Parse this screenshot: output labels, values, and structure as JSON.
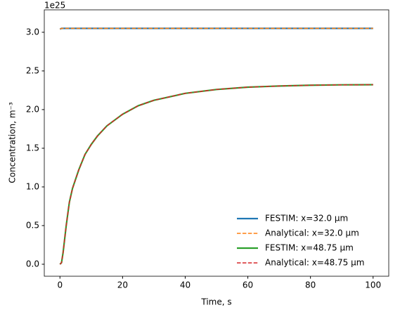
{
  "chart_data": {
    "type": "line",
    "y_label": "Concentration, m⁻³",
    "x_label": "Time, s",
    "y_offset_label": "1e25",
    "x": [
      0,
      0.5,
      1,
      2,
      3,
      4,
      5,
      6,
      8,
      10,
      12,
      15,
      20,
      25,
      30,
      40,
      50,
      60,
      70,
      80,
      90,
      100
    ],
    "series": [
      {
        "name": "FESTIM: x=32.0 µm",
        "color": "#1f77b4",
        "linestyle": "solid",
        "values": [
          3.04,
          3.05,
          3.05,
          3.05,
          3.05,
          3.05,
          3.05,
          3.05,
          3.05,
          3.05,
          3.05,
          3.05,
          3.05,
          3.05,
          3.05,
          3.05,
          3.05,
          3.05,
          3.05,
          3.05,
          3.05,
          3.05
        ]
      },
      {
        "name": "Analytical: x=32.0 µm",
        "color": "#ff7f0e",
        "linestyle": "dashed",
        "values": [
          3.04,
          3.05,
          3.05,
          3.05,
          3.05,
          3.05,
          3.05,
          3.05,
          3.05,
          3.05,
          3.05,
          3.05,
          3.05,
          3.05,
          3.05,
          3.05,
          3.05,
          3.05,
          3.05,
          3.05,
          3.05,
          3.05
        ]
      },
      {
        "name": "FESTIM: x=48.75 µm",
        "color": "#2ca02c",
        "linestyle": "solid",
        "values": [
          0,
          0.02,
          0.15,
          0.5,
          0.8,
          0.98,
          1.1,
          1.22,
          1.42,
          1.55,
          1.66,
          1.79,
          1.94,
          2.05,
          2.12,
          2.21,
          2.26,
          2.29,
          2.305,
          2.315,
          2.32,
          2.322
        ]
      },
      {
        "name": "Analytical: x=48.75 µm",
        "color": "#d62728",
        "linestyle": "dashed",
        "values": [
          0,
          0.02,
          0.15,
          0.5,
          0.8,
          0.98,
          1.1,
          1.22,
          1.42,
          1.55,
          1.66,
          1.79,
          1.94,
          2.05,
          2.12,
          2.21,
          2.26,
          2.29,
          2.305,
          2.315,
          2.32,
          2.322
        ]
      }
    ],
    "xlim": [
      -5,
      105
    ],
    "xticks": [
      0,
      20,
      40,
      60,
      80,
      100
    ],
    "ylim": [
      -0.155,
      3.29
    ],
    "yticks": [
      {
        "value": 0,
        "label": "0.0"
      },
      0.5,
      {
        "value": 1,
        "label": "1.0"
      },
      1.5,
      {
        "value": 2,
        "label": "2.0"
      },
      2.5,
      {
        "value": 3,
        "label": "3.0"
      }
    ],
    "grid": false,
    "legend": "lower right"
  }
}
